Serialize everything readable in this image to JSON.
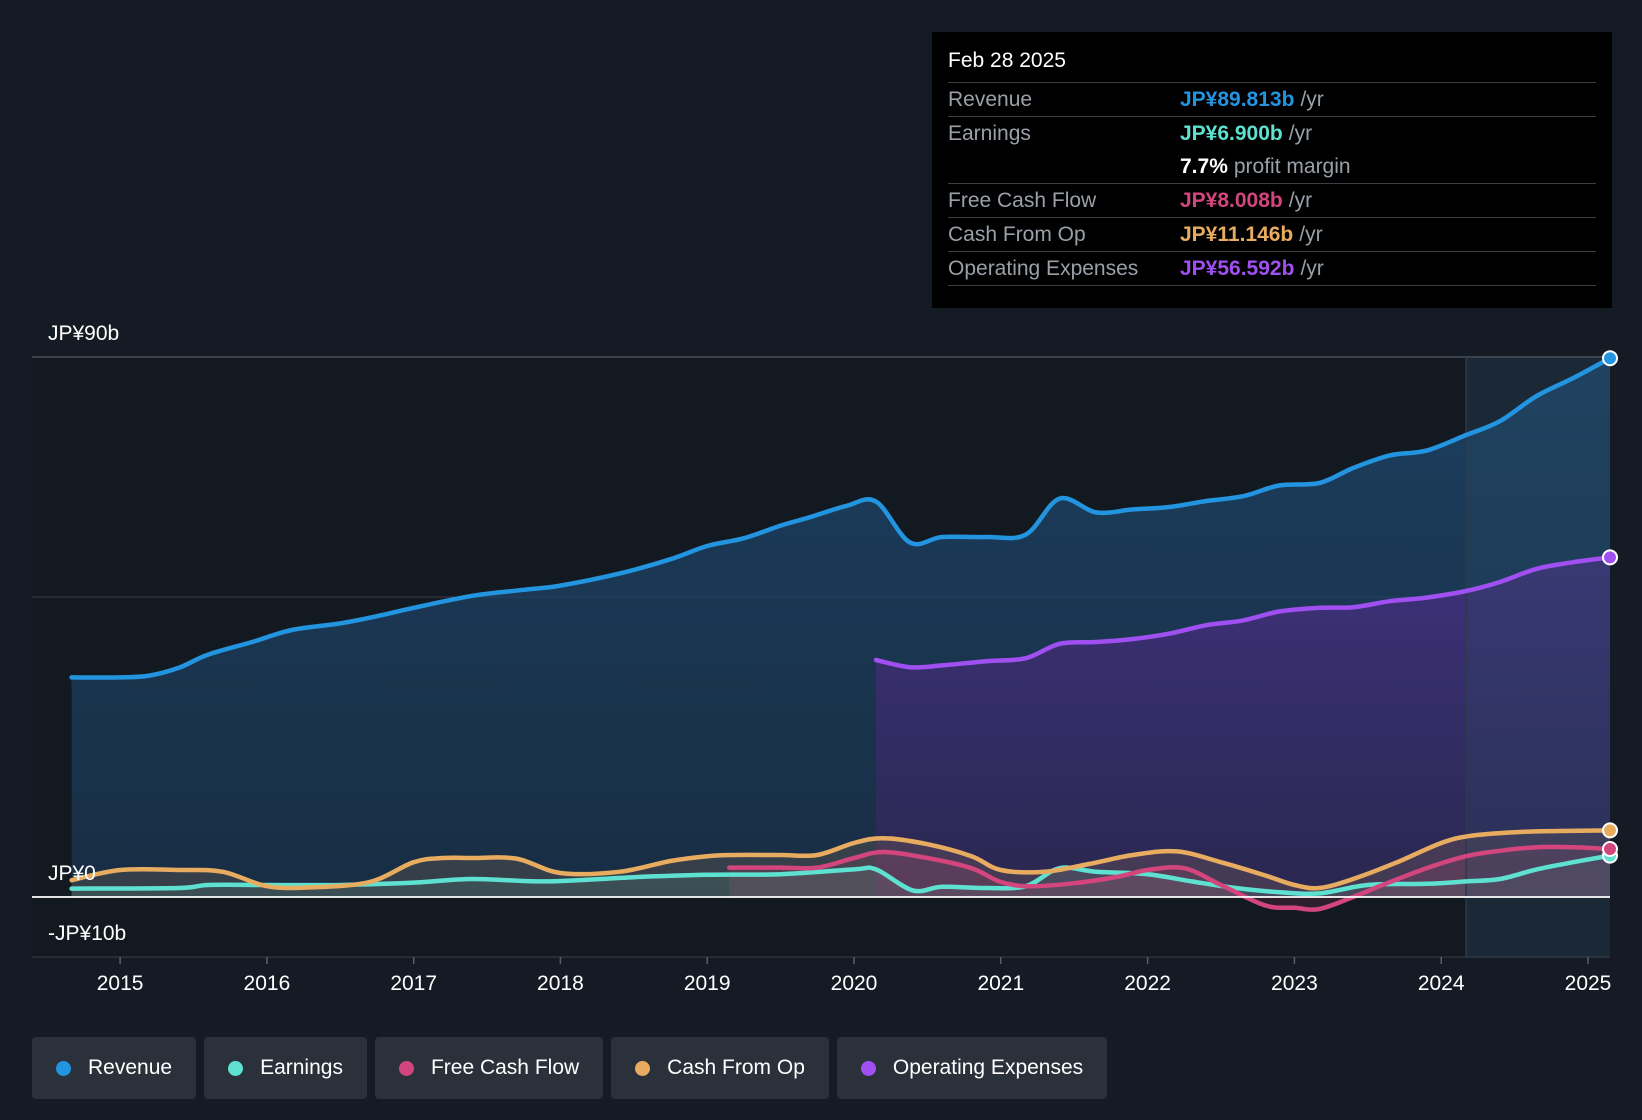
{
  "chart_data": {
    "type": "area",
    "y_labels": [
      "JP¥90b",
      "JP¥0",
      "-JP¥10b"
    ],
    "ylim": [
      -10,
      90
    ],
    "x_ticks": [
      "2015",
      "2016",
      "2017",
      "2018",
      "2019",
      "2020",
      "2021",
      "2022",
      "2023",
      "2024",
      "2025"
    ],
    "x_range": [
      2014.4,
      2025.15
    ],
    "series": [
      {
        "name": "Revenue",
        "color": "#2394df",
        "x": [
          2014.67,
          2015.0,
          2015.2,
          2015.4,
          2015.6,
          2015.9,
          2016.17,
          2016.5,
          2016.75,
          2017.0,
          2017.4,
          2017.75,
          2018.0,
          2018.4,
          2018.75,
          2019.0,
          2019.25,
          2019.5,
          2019.7,
          2019.95,
          2020.15,
          2020.38,
          2020.6,
          2020.9,
          2021.17,
          2021.4,
          2021.65,
          2021.9,
          2022.15,
          2022.4,
          2022.65,
          2022.9,
          2023.17,
          2023.4,
          2023.65,
          2023.9,
          2024.17,
          2024.4,
          2024.65,
          2024.9,
          2025.15
        ],
        "values": [
          36.6,
          36.6,
          36.9,
          38.2,
          40.4,
          42.5,
          44.5,
          45.6,
          46.8,
          48.2,
          50.2,
          51.2,
          51.9,
          53.9,
          56.3,
          58.5,
          59.8,
          61.9,
          63.3,
          65.2,
          65.9,
          59.1,
          60.0,
          60.0,
          60.4,
          66.4,
          64.1,
          64.6,
          65.0,
          66.0,
          66.8,
          68.6,
          69.0,
          71.5,
          73.6,
          74.4,
          77.0,
          79.3,
          83.5,
          86.5,
          89.8
        ]
      },
      {
        "name": "Earnings",
        "color": "#5ee1d1",
        "x": [
          2014.67,
          2015.4,
          2015.6,
          2016.0,
          2016.5,
          2017.0,
          2017.4,
          2017.9,
          2018.5,
          2019.0,
          2019.5,
          2020.0,
          2020.15,
          2020.4,
          2020.6,
          2020.9,
          2021.17,
          2021.4,
          2021.65,
          2022.0,
          2022.3,
          2022.6,
          2022.9,
          2023.17,
          2023.5,
          2023.9,
          2024.17,
          2024.4,
          2024.65,
          2024.9,
          2025.15
        ],
        "values": [
          1.4,
          1.5,
          2.0,
          2.0,
          2.0,
          2.4,
          3.0,
          2.6,
          3.3,
          3.7,
          3.8,
          4.6,
          4.6,
          1.1,
          1.7,
          1.5,
          1.8,
          4.8,
          4.2,
          3.8,
          2.6,
          1.5,
          0.8,
          0.6,
          2.0,
          2.2,
          2.6,
          3.0,
          4.6,
          5.8,
          6.9
        ]
      },
      {
        "name": "Free Cash Flow",
        "color": "#d2457d",
        "x": [
          2019.15,
          2019.5,
          2019.75,
          2020.0,
          2020.2,
          2020.5,
          2020.8,
          2021.0,
          2021.2,
          2021.5,
          2021.8,
          2022.0,
          2022.25,
          2022.5,
          2022.8,
          2023.0,
          2023.17,
          2023.4,
          2023.6,
          2023.9,
          2024.17,
          2024.4,
          2024.65,
          2024.9,
          2025.15
        ],
        "values": [
          4.9,
          4.9,
          4.9,
          6.5,
          7.5,
          6.5,
          4.8,
          2.5,
          1.8,
          2.3,
          3.4,
          4.5,
          4.8,
          2.0,
          -1.4,
          -1.8,
          -2.0,
          0.0,
          2.0,
          4.8,
          6.8,
          7.7,
          8.3,
          8.3,
          8.0
        ]
      },
      {
        "name": "Cash From Op",
        "color": "#e8ac60",
        "x": [
          2014.67,
          2015.0,
          2015.4,
          2015.7,
          2016.0,
          2016.3,
          2016.7,
          2017.0,
          2017.2,
          2017.4,
          2017.7,
          2018.0,
          2018.4,
          2018.75,
          2019.0,
          2019.2,
          2019.5,
          2019.75,
          2020.0,
          2020.2,
          2020.5,
          2020.8,
          2021.0,
          2021.3,
          2021.6,
          2021.9,
          2022.2,
          2022.5,
          2022.8,
          2023.0,
          2023.17,
          2023.4,
          2023.7,
          2024.0,
          2024.2,
          2024.5,
          2024.8,
          2025.15
        ],
        "values": [
          2.8,
          4.5,
          4.5,
          4.2,
          1.8,
          1.6,
          2.5,
          5.8,
          6.5,
          6.5,
          6.4,
          4.0,
          4.2,
          6.0,
          6.8,
          7.0,
          7.0,
          7.0,
          9.0,
          9.8,
          8.8,
          6.8,
          4.5,
          4.2,
          5.5,
          7.0,
          7.6,
          5.8,
          3.6,
          2.0,
          1.5,
          3.0,
          5.8,
          9.0,
          10.2,
          10.8,
          11.0,
          11.1
        ]
      },
      {
        "name": "Operating Expenses",
        "color": "#a04ff0",
        "x": [
          2020.15,
          2020.38,
          2020.6,
          2020.9,
          2021.17,
          2021.4,
          2021.65,
          2021.9,
          2022.15,
          2022.4,
          2022.65,
          2022.9,
          2023.17,
          2023.4,
          2023.65,
          2023.9,
          2024.17,
          2024.4,
          2024.65,
          2024.9,
          2025.15
        ],
        "values": [
          39.5,
          38.3,
          38.6,
          39.3,
          39.8,
          42.2,
          42.5,
          43.0,
          43.9,
          45.3,
          46.1,
          47.6,
          48.2,
          48.3,
          49.3,
          49.9,
          51.0,
          52.5,
          54.7,
          55.8,
          56.6
        ]
      }
    ],
    "highlight_from": 2024.17
  },
  "tooltip": {
    "date": "Feb 28 2025",
    "rows": [
      {
        "label": "Revenue",
        "value": "JP¥89.813b",
        "unit": "/yr",
        "color": "#2394df"
      },
      {
        "label": "Earnings",
        "value": "JP¥6.900b",
        "unit": "/yr",
        "color": "#5ee1d1"
      },
      {
        "label": "",
        "value": "7.7%",
        "unit": "profit margin",
        "color": "#ffffff"
      },
      {
        "label": "Free Cash Flow",
        "value": "JP¥8.008b",
        "unit": "/yr",
        "color": "#d2457d"
      },
      {
        "label": "Cash From Op",
        "value": "JP¥11.146b",
        "unit": "/yr",
        "color": "#e8ac60"
      },
      {
        "label": "Operating Expenses",
        "value": "JP¥56.592b",
        "unit": "/yr",
        "color": "#a04ff0"
      }
    ]
  },
  "legend": [
    {
      "label": "Revenue",
      "color": "#2394df"
    },
    {
      "label": "Earnings",
      "color": "#5ee1d1"
    },
    {
      "label": "Free Cash Flow",
      "color": "#d2457d"
    },
    {
      "label": "Cash From Op",
      "color": "#e8ac60"
    },
    {
      "label": "Operating Expenses",
      "color": "#a04ff0"
    }
  ]
}
